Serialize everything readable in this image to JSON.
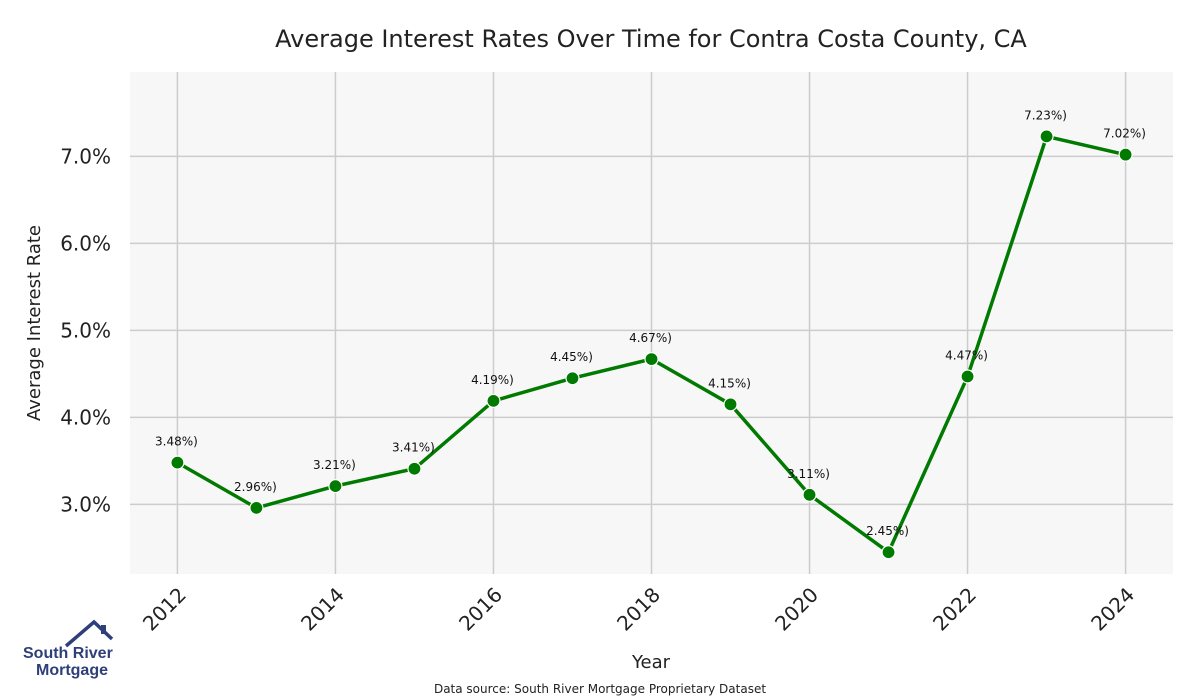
{
  "chart_data": {
    "type": "line",
    "title": "Average Interest Rates Over Time for Contra Costa County, CA",
    "xlabel": "Year",
    "ylabel": "Average Interest Rate",
    "x": [
      2012,
      2013,
      2014,
      2015,
      2016,
      2017,
      2018,
      2019,
      2020,
      2021,
      2022,
      2023,
      2024
    ],
    "series": [
      {
        "name": "",
        "color": "#007a00",
        "values": [
          3.48,
          2.96,
          3.21,
          3.41,
          4.19,
          4.45,
          4.67,
          4.15,
          3.11,
          2.45,
          4.47,
          7.23,
          7.02
        ],
        "labels": [
          "3.48%)",
          "2.96%)",
          "3.21%)",
          "3.41%)",
          "4.19%)",
          "4.45%)",
          "4.67%)",
          "4.15%)",
          "3.11%)",
          "2.45%)",
          "4.47%)",
          "7.23%)",
          "7.02%)"
        ]
      }
    ],
    "xticks": [
      2012,
      2014,
      2016,
      2018,
      2020,
      2022,
      2024
    ],
    "xtick_labels": [
      "2012",
      "2014",
      "2016",
      "2018",
      "2020",
      "2022",
      "2024"
    ],
    "yticks": [
      3.0,
      4.0,
      5.0,
      6.0,
      7.0
    ],
    "ytick_labels": [
      "3.0%",
      "4.0%",
      "5.0%",
      "6.0%",
      "7.0%"
    ],
    "xlim": [
      2011.4,
      2024.6
    ],
    "ylim": [
      2.2,
      7.97
    ],
    "grid": true,
    "plot_background": "#f7f7f7",
    "grid_color": "#cccccc"
  },
  "source_note": "Data source: South River Mortgage Proprietary Dataset",
  "logo": {
    "line1": "South River",
    "line2": "Mortgage",
    "color": "#2e3f7a"
  }
}
